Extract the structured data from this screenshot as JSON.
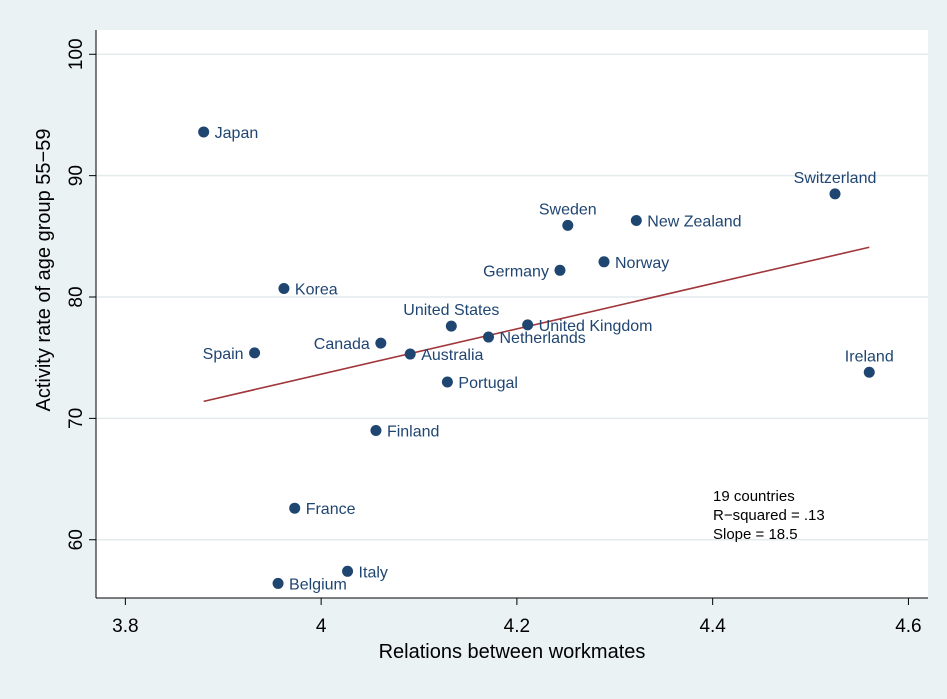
{
  "chart_data": {
    "type": "scatter",
    "title": "",
    "xlabel": "Relations between workmates",
    "ylabel": "Activity rate of age group 55−59",
    "xlim": [
      3.77,
      4.62
    ],
    "ylim": [
      55.2,
      102
    ],
    "x_ticks": [
      {
        "value": 3.8,
        "label": "3.8"
      },
      {
        "value": 4.0,
        "label": "4"
      },
      {
        "value": 4.2,
        "label": "4.2"
      },
      {
        "value": 4.4,
        "label": "4.4"
      },
      {
        "value": 4.6,
        "label": "4.6"
      }
    ],
    "y_ticks": [
      {
        "value": 60,
        "label": "60"
      },
      {
        "value": 70,
        "label": "70"
      },
      {
        "value": 80,
        "label": "80"
      },
      {
        "value": 90,
        "label": "90"
      },
      {
        "value": 100,
        "label": "100"
      }
    ],
    "grid": true,
    "points": [
      {
        "name": "Japan",
        "x": 3.88,
        "y": 93.6,
        "label_side": "right"
      },
      {
        "name": "Switzerland",
        "x": 4.525,
        "y": 88.5,
        "label_side": "above"
      },
      {
        "name": "Sweden",
        "x": 4.252,
        "y": 85.9,
        "label_side": "above"
      },
      {
        "name": "New Zealand",
        "x": 4.322,
        "y": 86.3,
        "label_side": "right"
      },
      {
        "name": "Norway",
        "x": 4.289,
        "y": 82.9,
        "label_side": "right"
      },
      {
        "name": "Germany",
        "x": 4.244,
        "y": 82.2,
        "label_side": "left"
      },
      {
        "name": "Korea",
        "x": 3.962,
        "y": 80.7,
        "label_side": "right"
      },
      {
        "name": "United States",
        "x": 4.133,
        "y": 77.6,
        "label_side": "above"
      },
      {
        "name": "United Kingdom",
        "x": 4.211,
        "y": 77.7,
        "label_side": "right"
      },
      {
        "name": "Netherlands",
        "x": 4.171,
        "y": 76.7,
        "label_side": "right"
      },
      {
        "name": "Canada",
        "x": 4.061,
        "y": 76.2,
        "label_side": "left"
      },
      {
        "name": "Australia",
        "x": 4.091,
        "y": 75.3,
        "label_side": "right"
      },
      {
        "name": "Spain",
        "x": 3.932,
        "y": 75.4,
        "label_side": "left"
      },
      {
        "name": "Ireland",
        "x": 4.56,
        "y": 73.8,
        "label_side": "above"
      },
      {
        "name": "Portugal",
        "x": 4.129,
        "y": 73.0,
        "label_side": "right"
      },
      {
        "name": "Finland",
        "x": 4.056,
        "y": 69.0,
        "label_side": "right"
      },
      {
        "name": "France",
        "x": 3.973,
        "y": 62.6,
        "label_side": "right"
      },
      {
        "name": "Italy",
        "x": 4.027,
        "y": 57.4,
        "label_side": "right"
      },
      {
        "name": "Belgium",
        "x": 3.956,
        "y": 56.4,
        "label_side": "right"
      }
    ],
    "fit_line": {
      "x": [
        3.88,
        4.56
      ],
      "y": [
        71.4,
        84.1
      ],
      "color": "#a0353a"
    },
    "annotations": [
      "19 countries",
      "R−squared = .13",
      "Slope = 18.5"
    ],
    "colors": {
      "marker": "#1f4571",
      "background": "#eaf2f3",
      "plot_area": "#ffffff",
      "grid": "#e3ebed"
    }
  }
}
